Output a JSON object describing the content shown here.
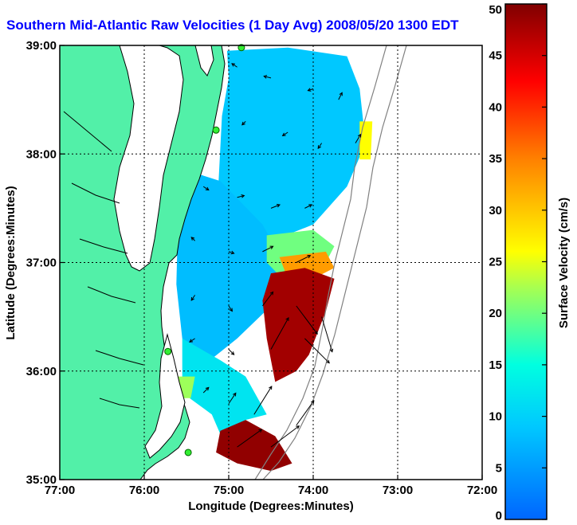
{
  "title": "Southern Mid-Atlantic Raw Velocities (1 Day Avg) 2008/05/20 1300 EDT",
  "colors": {
    "land": "#52f0a8",
    "coast_line": "#000000",
    "bathymetry": "#808080",
    "station": "#33ee33",
    "title": "#0000ff"
  },
  "chart_data": {
    "type": "heatmap",
    "xlabel": "Longitude (Degrees:Minutes)",
    "ylabel": "Latitude (Degrees:Minutes)",
    "xlim": [
      -77,
      -72
    ],
    "ylim": [
      35,
      39
    ],
    "x_ticks": [
      {
        "value": -77,
        "label": "77:00"
      },
      {
        "value": -76,
        "label": "76:00"
      },
      {
        "value": -75,
        "label": "75:00"
      },
      {
        "value": -74,
        "label": "74:00"
      },
      {
        "value": -73,
        "label": "73:00"
      },
      {
        "value": -72,
        "label": "72:00"
      }
    ],
    "y_ticks": [
      {
        "value": 35,
        "label": "35:00"
      },
      {
        "value": 36,
        "label": "36:00"
      },
      {
        "value": 37,
        "label": "37:00"
      },
      {
        "value": 38,
        "label": "38:00"
      },
      {
        "value": 39,
        "label": "39:00"
      }
    ],
    "grid": true,
    "colorbar": {
      "label": "Surface Velocity (cm/s)",
      "min": 0,
      "max": 50,
      "placement": "right",
      "ticks": [
        0,
        5,
        10,
        15,
        20,
        25,
        30,
        35,
        40,
        45,
        50
      ]
    },
    "stations": [
      {
        "lon": -74.85,
        "lat": 38.98
      },
      {
        "lon": -75.15,
        "lat": 38.22
      },
      {
        "lon": -75.72,
        "lat": 36.18
      },
      {
        "lon": -75.48,
        "lat": 35.25
      }
    ],
    "velocity_regions": [
      {
        "name": "offshore-north",
        "value": 9,
        "poly": [
          [
            -75.02,
            38.95
          ],
          [
            -74.3,
            38.98
          ],
          [
            -73.6,
            38.9
          ],
          [
            -73.45,
            38.6
          ],
          [
            -73.38,
            38.1
          ],
          [
            -73.6,
            37.7
          ],
          [
            -74.0,
            37.35
          ],
          [
            -74.55,
            37.18
          ],
          [
            -75.02,
            37.3
          ],
          [
            -75.12,
            37.75
          ],
          [
            -75.08,
            38.35
          ],
          [
            -75.0,
            38.7
          ]
        ]
      },
      {
        "name": "nearshore-central",
        "value": 8,
        "poly": [
          [
            -75.5,
            37.85
          ],
          [
            -75.1,
            37.75
          ],
          [
            -74.6,
            37.35
          ],
          [
            -74.35,
            37.0
          ],
          [
            -74.5,
            36.6
          ],
          [
            -74.9,
            36.3
          ],
          [
            -75.3,
            36.05
          ],
          [
            -75.55,
            36.3
          ],
          [
            -75.62,
            36.8
          ],
          [
            -75.6,
            37.4
          ]
        ]
      },
      {
        "name": "south-shelf",
        "value": 12,
        "poly": [
          [
            -75.55,
            36.3
          ],
          [
            -75.1,
            36.1
          ],
          [
            -74.8,
            35.95
          ],
          [
            -74.55,
            35.6
          ],
          [
            -74.8,
            35.55
          ],
          [
            -75.1,
            35.42
          ],
          [
            -75.2,
            35.6
          ],
          [
            -75.55,
            35.8
          ]
        ]
      },
      {
        "name": "sw-patch",
        "value": 22,
        "poly": [
          [
            -75.6,
            35.95
          ],
          [
            -75.4,
            35.95
          ],
          [
            -75.45,
            35.75
          ],
          [
            -75.6,
            35.75
          ]
        ]
      },
      {
        "name": "gulfstream-edge",
        "value": 20,
        "poly": [
          [
            -74.55,
            37.25
          ],
          [
            -74.0,
            37.3
          ],
          [
            -73.75,
            37.15
          ],
          [
            -73.95,
            36.85
          ],
          [
            -74.3,
            36.8
          ],
          [
            -74.55,
            37.0
          ]
        ]
      },
      {
        "name": "gulfstream-warm",
        "value": 33,
        "poly": [
          [
            -74.4,
            37.05
          ],
          [
            -73.85,
            37.1
          ],
          [
            -73.75,
            36.95
          ],
          [
            -74.0,
            36.85
          ],
          [
            -74.3,
            36.85
          ]
        ]
      },
      {
        "name": "gulfstream-core",
        "value": 48,
        "poly": [
          [
            -74.5,
            36.9
          ],
          [
            -74.1,
            36.95
          ],
          [
            -73.75,
            36.85
          ],
          [
            -73.85,
            36.55
          ],
          [
            -74.05,
            36.15
          ],
          [
            -74.2,
            36.0
          ],
          [
            -74.45,
            35.9
          ],
          [
            -74.55,
            36.3
          ],
          [
            -74.6,
            36.65
          ]
        ]
      },
      {
        "name": "gulfstream-south",
        "value": 49,
        "poly": [
          [
            -75.1,
            35.45
          ],
          [
            -74.8,
            35.55
          ],
          [
            -74.45,
            35.4
          ],
          [
            -74.25,
            35.15
          ],
          [
            -74.5,
            35.08
          ],
          [
            -74.9,
            35.15
          ],
          [
            -75.15,
            35.25
          ]
        ]
      },
      {
        "name": "east-edge",
        "value": 26,
        "poly": [
          [
            -73.45,
            38.3
          ],
          [
            -73.3,
            38.3
          ],
          [
            -73.32,
            37.95
          ],
          [
            -73.45,
            37.95
          ]
        ]
      }
    ],
    "arrow_vectors": [
      {
        "lon": -74.9,
        "lat": 38.8,
        "u": -3,
        "v": 2
      },
      {
        "lon": -74.5,
        "lat": 38.7,
        "u": -4,
        "v": 1
      },
      {
        "lon": -74.0,
        "lat": 38.6,
        "u": -3,
        "v": -1
      },
      {
        "lon": -73.7,
        "lat": 38.5,
        "u": 2,
        "v": 4
      },
      {
        "lon": -74.8,
        "lat": 38.3,
        "u": -2,
        "v": -2
      },
      {
        "lon": -74.3,
        "lat": 38.2,
        "u": -3,
        "v": -2
      },
      {
        "lon": -73.9,
        "lat": 38.1,
        "u": -2,
        "v": -3
      },
      {
        "lon": -73.5,
        "lat": 38.1,
        "u": 3,
        "v": 5
      },
      {
        "lon": -75.3,
        "lat": 37.7,
        "u": 3,
        "v": -2
      },
      {
        "lon": -74.9,
        "lat": 37.6,
        "u": 4,
        "v": 1
      },
      {
        "lon": -74.5,
        "lat": 37.5,
        "u": 5,
        "v": 2
      },
      {
        "lon": -74.1,
        "lat": 37.5,
        "u": 4,
        "v": 2
      },
      {
        "lon": -75.4,
        "lat": 37.2,
        "u": -2,
        "v": 2
      },
      {
        "lon": -75.0,
        "lat": 37.1,
        "u": 3,
        "v": -1
      },
      {
        "lon": -74.6,
        "lat": 37.1,
        "u": 6,
        "v": 3
      },
      {
        "lon": -74.2,
        "lat": 37.0,
        "u": 8,
        "v": 4
      },
      {
        "lon": -75.4,
        "lat": 36.7,
        "u": -2,
        "v": -3
      },
      {
        "lon": -75.0,
        "lat": 36.6,
        "u": 2,
        "v": -3
      },
      {
        "lon": -74.6,
        "lat": 36.6,
        "u": 6,
        "v": 8
      },
      {
        "lon": -74.2,
        "lat": 36.6,
        "u": 12,
        "v": -16
      },
      {
        "lon": -73.9,
        "lat": 36.5,
        "u": 6,
        "v": -20
      },
      {
        "lon": -75.4,
        "lat": 36.3,
        "u": -3,
        "v": -2
      },
      {
        "lon": -75.0,
        "lat": 36.2,
        "u": 3,
        "v": -3
      },
      {
        "lon": -74.5,
        "lat": 36.2,
        "u": 10,
        "v": 18
      },
      {
        "lon": -74.1,
        "lat": 36.3,
        "u": 14,
        "v": -14
      },
      {
        "lon": -75.3,
        "lat": 35.8,
        "u": 3,
        "v": 3
      },
      {
        "lon": -75.0,
        "lat": 35.7,
        "u": 4,
        "v": 6
      },
      {
        "lon": -74.7,
        "lat": 35.6,
        "u": 10,
        "v": 16
      },
      {
        "lon": -74.9,
        "lat": 35.3,
        "u": 14,
        "v": 10
      },
      {
        "lon": -74.5,
        "lat": 35.3,
        "u": 16,
        "v": 12
      },
      {
        "lon": -74.2,
        "lat": 35.5,
        "u": 10,
        "v": 14
      }
    ]
  }
}
